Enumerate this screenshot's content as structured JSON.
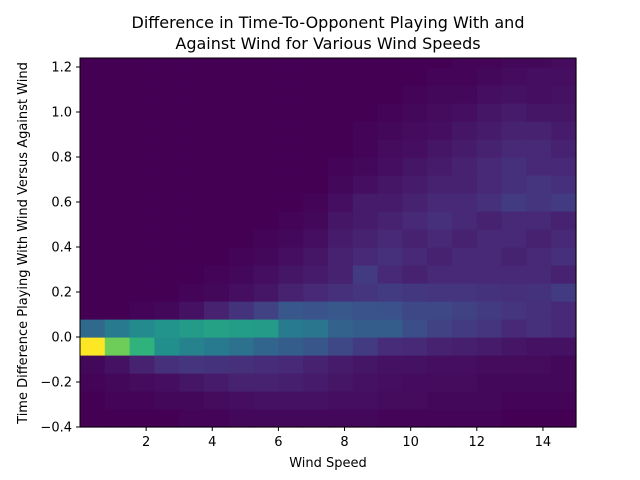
{
  "chart_data": {
    "type": "heatmap",
    "title_lines": [
      "Difference in Time-To-Opponent Playing With and",
      "Against Wind for Various Wind Speeds"
    ],
    "xlabel": "Wind Speed",
    "ylabel": "Time Difference Playing With Wind Versus Against Wind",
    "xlim": [
      0,
      15
    ],
    "ylim": [
      -0.4,
      1.24
    ],
    "xticks": [
      2,
      4,
      6,
      8,
      10,
      12,
      14
    ],
    "yticks": [
      -0.4,
      -0.2,
      0.0,
      0.2,
      0.4,
      0.6,
      0.8,
      1.0,
      1.2
    ],
    "x_bin_width": 0.75,
    "y_bin_edges": [
      -0.4,
      -0.32,
      -0.24,
      -0.16,
      -0.08,
      0.0,
      0.08,
      0.16,
      0.24,
      0.32,
      0.4,
      0.48,
      0.56,
      0.64,
      0.72,
      0.8,
      0.88,
      0.96,
      1.04,
      1.12,
      1.2,
      1.24
    ],
    "colormap": "viridis",
    "grid": false,
    "intensity_rows_bottom_to_top": [
      [
        0.0,
        0.0,
        0.0,
        0.0,
        0.01,
        0.01,
        0.02,
        0.02,
        0.02,
        0.02,
        0.02,
        0.02,
        0.01,
        0.01,
        0.01,
        0.01,
        0.01,
        0.0,
        0.0,
        0.0
      ],
      [
        0.0,
        0.01,
        0.01,
        0.02,
        0.02,
        0.03,
        0.04,
        0.05,
        0.05,
        0.05,
        0.04,
        0.04,
        0.03,
        0.03,
        0.02,
        0.02,
        0.02,
        0.01,
        0.01,
        0.01
      ],
      [
        0.01,
        0.02,
        0.03,
        0.04,
        0.06,
        0.08,
        0.1,
        0.1,
        0.09,
        0.08,
        0.06,
        0.05,
        0.04,
        0.03,
        0.03,
        0.03,
        0.02,
        0.02,
        0.02,
        0.02
      ],
      [
        0.02,
        0.05,
        0.1,
        0.14,
        0.16,
        0.15,
        0.14,
        0.13,
        0.12,
        0.1,
        0.08,
        0.06,
        0.05,
        0.05,
        0.04,
        0.04,
        0.03,
        0.03,
        0.03,
        0.02
      ],
      [
        1.0,
        0.78,
        0.65,
        0.5,
        0.45,
        0.42,
        0.38,
        0.33,
        0.3,
        0.27,
        0.22,
        0.18,
        0.13,
        0.12,
        0.1,
        0.09,
        0.08,
        0.06,
        0.05,
        0.05
      ],
      [
        0.35,
        0.42,
        0.48,
        0.52,
        0.55,
        0.58,
        0.56,
        0.55,
        0.42,
        0.4,
        0.32,
        0.3,
        0.3,
        0.24,
        0.2,
        0.18,
        0.16,
        0.12,
        0.14,
        0.12
      ],
      [
        0.0,
        0.0,
        0.01,
        0.02,
        0.05,
        0.1,
        0.15,
        0.2,
        0.28,
        0.26,
        0.28,
        0.26,
        0.25,
        0.22,
        0.22,
        0.2,
        0.18,
        0.16,
        0.14,
        0.12
      ],
      [
        0.0,
        0.0,
        0.0,
        0.0,
        0.01,
        0.02,
        0.04,
        0.06,
        0.1,
        0.12,
        0.14,
        0.16,
        0.18,
        0.17,
        0.16,
        0.16,
        0.15,
        0.14,
        0.15,
        0.18
      ],
      [
        0.0,
        0.0,
        0.0,
        0.0,
        0.0,
        0.01,
        0.02,
        0.04,
        0.06,
        0.08,
        0.1,
        0.18,
        0.12,
        0.1,
        0.12,
        0.12,
        0.12,
        0.12,
        0.12,
        0.1
      ],
      [
        0.0,
        0.0,
        0.0,
        0.0,
        0.0,
        0.0,
        0.01,
        0.02,
        0.04,
        0.06,
        0.1,
        0.12,
        0.14,
        0.12,
        0.1,
        0.12,
        0.12,
        0.1,
        0.12,
        0.14
      ],
      [
        0.0,
        0.0,
        0.0,
        0.0,
        0.0,
        0.0,
        0.0,
        0.01,
        0.02,
        0.04,
        0.08,
        0.1,
        0.12,
        0.1,
        0.12,
        0.1,
        0.12,
        0.12,
        0.1,
        0.12
      ],
      [
        0.0,
        0.0,
        0.0,
        0.0,
        0.0,
        0.0,
        0.0,
        0.0,
        0.01,
        0.02,
        0.06,
        0.08,
        0.1,
        0.12,
        0.14,
        0.12,
        0.1,
        0.12,
        0.12,
        0.1
      ],
      [
        0.0,
        0.0,
        0.0,
        0.0,
        0.0,
        0.0,
        0.0,
        0.0,
        0.0,
        0.01,
        0.04,
        0.08,
        0.08,
        0.1,
        0.12,
        0.12,
        0.14,
        0.18,
        0.16,
        0.18
      ],
      [
        0.0,
        0.0,
        0.0,
        0.0,
        0.0,
        0.0,
        0.0,
        0.0,
        0.0,
        0.0,
        0.02,
        0.04,
        0.06,
        0.08,
        0.1,
        0.1,
        0.12,
        0.14,
        0.16,
        0.14
      ],
      [
        0.0,
        0.0,
        0.0,
        0.0,
        0.0,
        0.0,
        0.0,
        0.0,
        0.0,
        0.0,
        0.01,
        0.02,
        0.04,
        0.06,
        0.08,
        0.1,
        0.12,
        0.14,
        0.12,
        0.12
      ],
      [
        0.0,
        0.0,
        0.0,
        0.0,
        0.0,
        0.0,
        0.0,
        0.0,
        0.0,
        0.0,
        0.0,
        0.01,
        0.03,
        0.04,
        0.06,
        0.08,
        0.1,
        0.12,
        0.12,
        0.1
      ],
      [
        0.0,
        0.0,
        0.0,
        0.0,
        0.0,
        0.0,
        0.0,
        0.0,
        0.0,
        0.0,
        0.0,
        0.01,
        0.02,
        0.03,
        0.04,
        0.06,
        0.08,
        0.1,
        0.1,
        0.08
      ],
      [
        0.0,
        0.0,
        0.0,
        0.0,
        0.0,
        0.0,
        0.0,
        0.0,
        0.0,
        0.0,
        0.0,
        0.0,
        0.01,
        0.02,
        0.03,
        0.04,
        0.06,
        0.08,
        0.06,
        0.06
      ],
      [
        0.0,
        0.0,
        0.0,
        0.0,
        0.0,
        0.0,
        0.0,
        0.0,
        0.0,
        0.0,
        0.0,
        0.0,
        0.0,
        0.01,
        0.02,
        0.02,
        0.04,
        0.05,
        0.04,
        0.05
      ],
      [
        0.0,
        0.0,
        0.0,
        0.0,
        0.0,
        0.0,
        0.0,
        0.0,
        0.0,
        0.0,
        0.0,
        0.0,
        0.0,
        0.0,
        0.01,
        0.01,
        0.02,
        0.03,
        0.04,
        0.04
      ],
      [
        0.0,
        0.0,
        0.0,
        0.0,
        0.0,
        0.0,
        0.0,
        0.0,
        0.0,
        0.0,
        0.0,
        0.0,
        0.0,
        0.0,
        0.0,
        0.01,
        0.01,
        0.02,
        0.02,
        0.03
      ]
    ]
  }
}
